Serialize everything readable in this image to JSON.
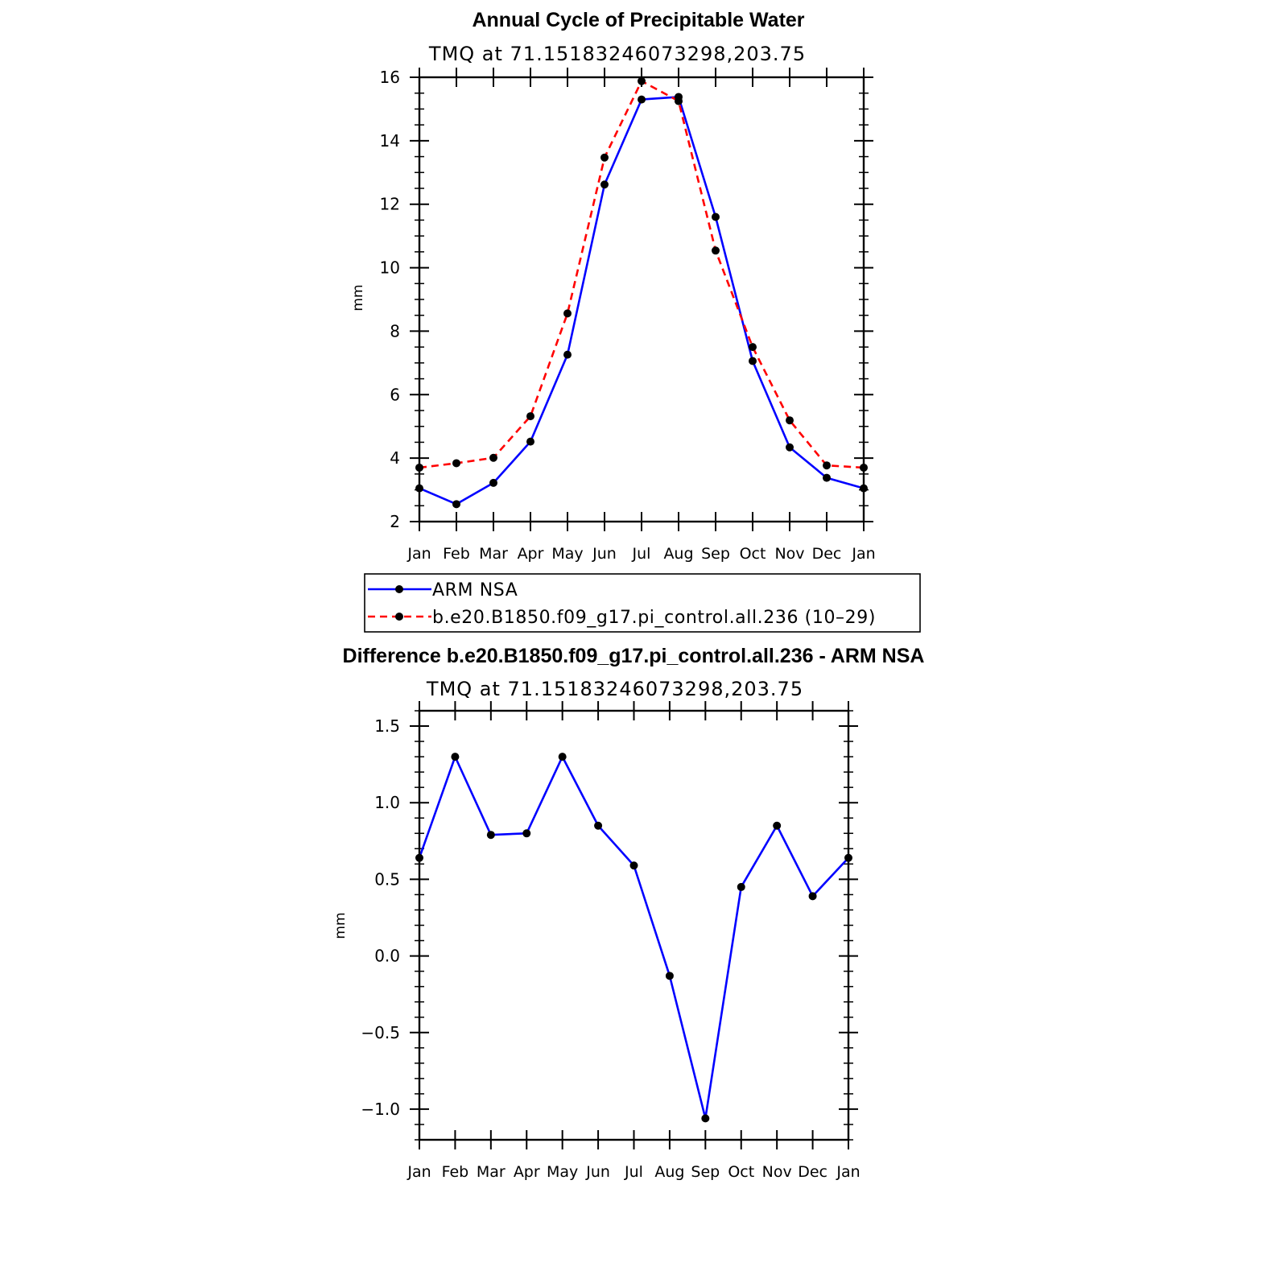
{
  "chart_data": [
    {
      "type": "line",
      "title": "Annual Cycle of Precipitable Water",
      "subtitle": "TMQ at 71.15183246073298,203.75",
      "xlabel": "",
      "ylabel": "mm",
      "categories": [
        "Jan",
        "Feb",
        "Mar",
        "Apr",
        "May",
        "Jun",
        "Jul",
        "Aug",
        "Sep",
        "Oct",
        "Nov",
        "Dec",
        "Jan"
      ],
      "ylim": [
        2,
        16
      ],
      "yticks": [
        "2",
        "4",
        "6",
        "8",
        "10",
        "12",
        "14",
        "16"
      ],
      "series": [
        {
          "name": "ARM NSA",
          "color": "#0000ff",
          "dash": "solid",
          "values": [
            3.05,
            2.55,
            3.22,
            4.52,
            7.26,
            12.62,
            15.3,
            15.38,
            11.6,
            7.06,
            4.34,
            3.38,
            3.05
          ]
        },
        {
          "name": "b.e20.B1850.f09_g17.pi_control.all.236 (10–29)",
          "color": "#ff0000",
          "dash": "dashed",
          "values": [
            3.7,
            3.84,
            4.01,
            5.32,
            8.56,
            13.47,
            15.88,
            15.25,
            10.54,
            7.5,
            5.19,
            3.77,
            3.7
          ]
        }
      ],
      "legend": "below"
    },
    {
      "type": "line",
      "title": "Difference b.e20.B1850.f09_g17.pi_control.all.236 - ARM NSA",
      "subtitle": "TMQ at 71.15183246073298,203.75",
      "xlabel": "",
      "ylabel": "mm",
      "categories": [
        "Jan",
        "Feb",
        "Mar",
        "Apr",
        "May",
        "Jun",
        "Jul",
        "Aug",
        "Sep",
        "Oct",
        "Nov",
        "Dec",
        "Jan"
      ],
      "ylim": [
        -1.2,
        1.6
      ],
      "yticks": [
        "−1.0",
        "−0.5",
        "0.0",
        "0.5",
        "1.0",
        "1.5"
      ],
      "series": [
        {
          "name": "Difference",
          "color": "#0000ff",
          "dash": "solid",
          "values": [
            0.64,
            1.3,
            0.79,
            0.8,
            1.3,
            0.85,
            0.59,
            -0.13,
            -1.06,
            0.45,
            0.85,
            0.39,
            0.64
          ]
        }
      ]
    }
  ]
}
